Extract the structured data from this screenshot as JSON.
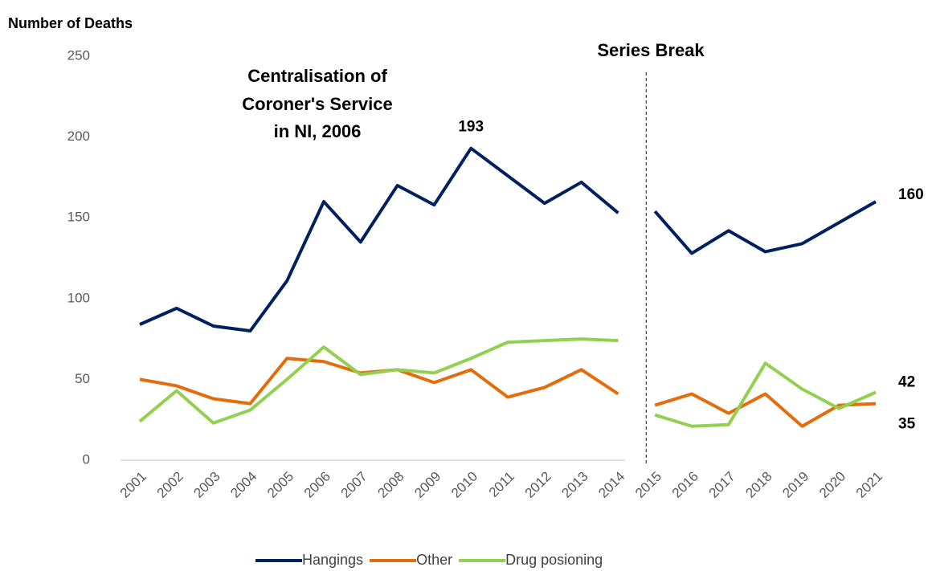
{
  "chart_data": {
    "type": "line",
    "y_axis_label": "Number of Deaths",
    "categories": [
      "2001",
      "2002",
      "2003",
      "2004",
      "2005",
      "2006",
      "2007",
      "2008",
      "2009",
      "2010",
      "2011",
      "2012",
      "2013",
      "2014",
      "2015",
      "2016",
      "2017",
      "2018",
      "2019",
      "2020",
      "2021"
    ],
    "series": [
      {
        "name": "Hangings",
        "color": "#002060",
        "values": [
          84,
          94,
          83,
          80,
          111,
          160,
          135,
          170,
          158,
          193,
          176,
          159,
          172,
          153,
          154,
          128,
          142,
          129,
          134,
          147,
          160
        ]
      },
      {
        "name": "Other",
        "color": "#e46c0a",
        "values": [
          50,
          46,
          38,
          35,
          63,
          61,
          54,
          56,
          48,
          56,
          39,
          45,
          56,
          41,
          34,
          41,
          29,
          41,
          21,
          34,
          35
        ]
      },
      {
        "name": "Drug posioning",
        "color": "#92d050",
        "values": [
          24,
          43,
          23,
          31,
          50,
          70,
          53,
          56,
          54,
          63,
          73,
          74,
          75,
          74,
          28,
          21,
          22,
          60,
          44,
          32,
          42
        ]
      }
    ],
    "ylim": [
      0,
      250
    ],
    "yticks": [
      0,
      50,
      100,
      150,
      200,
      250
    ],
    "series_break": {
      "label": "Series Break",
      "before": "2015"
    },
    "annotation": [
      "Centralisation of",
      "Coroner's Service",
      "in NI, 2006"
    ],
    "legend": "bottom"
  }
}
